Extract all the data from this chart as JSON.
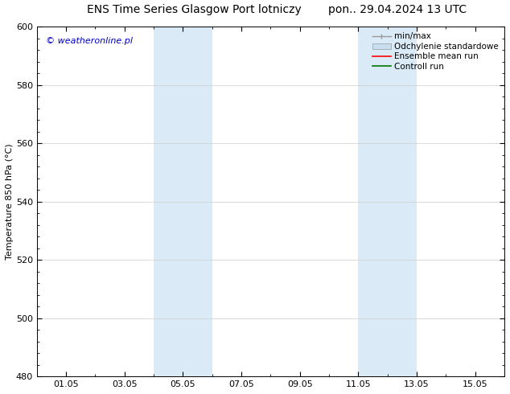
{
  "title": "ENS Time Series Glasgow Port lotniczy",
  "title_right": "pon.. 29.04.2024 13 UTC",
  "ylabel": "Temperature 850 hPa (°C)",
  "watermark": "© weatheronline.pl",
  "watermark_color": "#0000cc",
  "ylim_bottom": 480,
  "ylim_top": 600,
  "yticks": [
    480,
    500,
    520,
    540,
    560,
    580,
    600
  ],
  "xtick_labels": [
    "01.05",
    "03.05",
    "05.05",
    "07.05",
    "09.05",
    "11.05",
    "13.05",
    "15.05"
  ],
  "xtick_positions": [
    1,
    3,
    5,
    7,
    9,
    11,
    13,
    15
  ],
  "xlim": [
    0,
    16
  ],
  "shaded_regions": [
    {
      "xmin": 4.0,
      "xmax": 6.0,
      "color": "#daeaf6"
    },
    {
      "xmin": 11.0,
      "xmax": 13.0,
      "color": "#daeaf6"
    }
  ],
  "bg_color": "#ffffff",
  "plot_bg_color": "#ffffff",
  "legend_items": [
    {
      "label": "min/max",
      "color": "#999999",
      "lw": 1.0,
      "type": "line_with_caps"
    },
    {
      "label": "Odchylenie standardowe",
      "color": "#c8dded",
      "lw": 8,
      "type": "bar"
    },
    {
      "label": "Ensemble mean run",
      "color": "#ff0000",
      "lw": 1.2,
      "type": "line"
    },
    {
      "label": "Controll run",
      "color": "#007700",
      "lw": 1.2,
      "type": "line"
    }
  ],
  "title_fontsize": 10,
  "axis_fontsize": 8,
  "tick_fontsize": 8,
  "watermark_fontsize": 8,
  "legend_fontsize": 7.5
}
